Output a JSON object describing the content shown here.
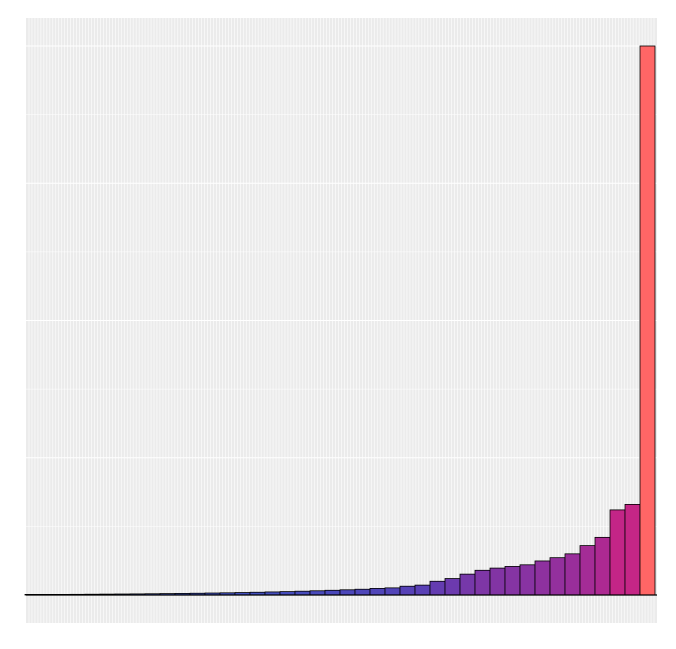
{
  "chart_data": {
    "type": "bar",
    "title": "",
    "xlabel": "",
    "ylabel": "",
    "grid": true,
    "legend": "none",
    "ylim": [
      -0.05,
      1.0
    ],
    "color_scale": [
      "#1a66cc",
      "#5a3fb5",
      "#c0248a",
      "#e8306a",
      "#ff6666"
    ],
    "bar_outline": "#000000",
    "values": [
      0.0008,
      0.0009,
      0.001,
      0.0012,
      0.0014,
      0.0016,
      0.0018,
      0.002,
      0.0023,
      0.0026,
      0.0029,
      0.0032,
      0.0036,
      0.004,
      0.0045,
      0.005,
      0.0056,
      0.0062,
      0.0069,
      0.0077,
      0.0086,
      0.0095,
      0.0105,
      0.012,
      0.013,
      0.016,
      0.018,
      0.025,
      0.03,
      0.038,
      0.045,
      0.049,
      0.052,
      0.055,
      0.062,
      0.068,
      0.075,
      0.09,
      0.105,
      0.155,
      0.165,
      1.0
    ]
  }
}
